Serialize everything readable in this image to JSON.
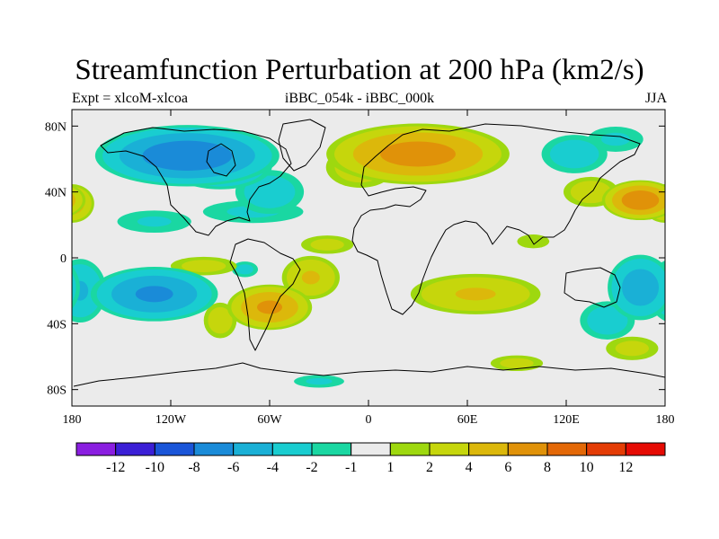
{
  "figure": {
    "title": "Streamfunction Perturbation at 200 hPa (km2/s)",
    "left_subtitle": "Expt = xlcoM-xlcoa",
    "center_subtitle": "iBBC_054k - iBBC_000k",
    "right_subtitle": "JJA"
  },
  "chart_data": {
    "type": "heatmap",
    "projection": "cylindrical equidistant",
    "title": "Streamfunction Perturbation at 200 hPa (km2/s)",
    "xlim": [
      -180,
      180
    ],
    "ylim": [
      -90,
      90
    ],
    "x_ticks": [
      {
        "value": -180,
        "label": "180"
      },
      {
        "value": -120,
        "label": "120W"
      },
      {
        "value": -60,
        "label": "60W"
      },
      {
        "value": 0,
        "label": "0"
      },
      {
        "value": 60,
        "label": "60E"
      },
      {
        "value": 120,
        "label": "120E"
      },
      {
        "value": 180,
        "label": "180"
      }
    ],
    "y_ticks": [
      {
        "value": 80,
        "label": "80N"
      },
      {
        "value": 40,
        "label": "40N"
      },
      {
        "value": 0,
        "label": "0"
      },
      {
        "value": -40,
        "label": "40S"
      },
      {
        "value": -80,
        "label": "80S"
      }
    ],
    "colorbar": {
      "colors": [
        "#8a1ee0",
        "#3b1fd6",
        "#1a55d8",
        "#1a8bd8",
        "#1ab0d6",
        "#19cdd0",
        "#1ad7a2",
        "#ebebeb",
        "#9ed80f",
        "#c6d60c",
        "#dcb80b",
        "#e09209",
        "#e36807",
        "#e43c05",
        "#e50b04"
      ],
      "boundaries": [
        -12,
        -10,
        -8,
        -6,
        -4,
        -2,
        -1,
        1,
        2,
        4,
        6,
        8,
        10,
        12
      ],
      "labels": [
        "-12",
        "-10",
        "-8",
        "-6",
        "-4",
        "-2",
        "-1",
        "1",
        "2",
        "4",
        "6",
        "8",
        "10",
        "12"
      ]
    },
    "anomaly_centers": [
      {
        "lon": -110,
        "lat": 62,
        "value": -7,
        "rx": 60,
        "ry": 20
      },
      {
        "lon": -90,
        "lat": 56,
        "value": -5,
        "rx": 35,
        "ry": 16
      },
      {
        "lon": -60,
        "lat": 40,
        "value": -3,
        "rx": 25,
        "ry": 16
      },
      {
        "lon": -70,
        "lat": 28,
        "value": -2.2,
        "rx": 40,
        "ry": 9
      },
      {
        "lon": -130,
        "lat": 22,
        "value": -2.1,
        "rx": 30,
        "ry": 9
      },
      {
        "lon": -130,
        "lat": -22,
        "value": -6,
        "rx": 42,
        "ry": 18
      },
      {
        "lon": -175,
        "lat": -20,
        "value": -4,
        "rx": 18,
        "ry": 22
      },
      {
        "lon": 165,
        "lat": -18,
        "value": -5,
        "rx": 22,
        "ry": 22
      },
      {
        "lon": 145,
        "lat": -38,
        "value": -3,
        "rx": 20,
        "ry": 14
      },
      {
        "lon": 125,
        "lat": 63,
        "value": -3,
        "rx": 24,
        "ry": 14
      },
      {
        "lon": 150,
        "lat": 72,
        "value": -2.2,
        "rx": 22,
        "ry": 10
      },
      {
        "lon": -75,
        "lat": -7,
        "value": -2.5,
        "rx": 10,
        "ry": 6
      },
      {
        "lon": -30,
        "lat": -75,
        "value": -2.2,
        "rx": 20,
        "ry": 5
      },
      {
        "lon": 30,
        "lat": 63,
        "value": 6.5,
        "rx": 60,
        "ry": 20
      },
      {
        "lon": -5,
        "lat": 55,
        "value": 3,
        "rx": 25,
        "ry": 15
      },
      {
        "lon": 165,
        "lat": 35,
        "value": 7,
        "rx": 25,
        "ry": 13
      },
      {
        "lon": 135,
        "lat": 40,
        "value": 3,
        "rx": 20,
        "ry": 11
      },
      {
        "lon": -180,
        "lat": 33,
        "value": 5,
        "rx": 15,
        "ry": 13
      },
      {
        "lon": -60,
        "lat": -30,
        "value": 6,
        "rx": 28,
        "ry": 15
      },
      {
        "lon": -90,
        "lat": -38,
        "value": 3,
        "rx": 12,
        "ry": 13
      },
      {
        "lon": -35,
        "lat": -12,
        "value": 4,
        "rx": 20,
        "ry": 15
      },
      {
        "lon": -100,
        "lat": -5,
        "value": 2.6,
        "rx": 25,
        "ry": 7
      },
      {
        "lon": 65,
        "lat": -22,
        "value": 4,
        "rx": 45,
        "ry": 14
      },
      {
        "lon": -25,
        "lat": 8,
        "value": 2.5,
        "rx": 20,
        "ry": 7
      },
      {
        "lon": 90,
        "lat": -64,
        "value": 2.5,
        "rx": 20,
        "ry": 6
      },
      {
        "lon": 160,
        "lat": -55,
        "value": 2.5,
        "rx": 20,
        "ry": 9
      },
      {
        "lon": 100,
        "lat": 10,
        "value": 1.8,
        "rx": 14,
        "ry": 6
      }
    ]
  }
}
